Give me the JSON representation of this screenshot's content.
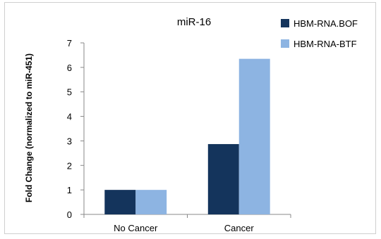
{
  "chart_data": {
    "type": "bar",
    "title": "miR-16",
    "xlabel": "",
    "ylabel": "Fold Change (normalized to miR-451)",
    "categories": [
      "No Cancer",
      "Cancer"
    ],
    "series": [
      {
        "name": "HBM-RNA.BOF",
        "values": [
          1.0,
          2.87
        ],
        "color": "#14345c"
      },
      {
        "name": "HBM-RNA-BTF",
        "values": [
          1.0,
          6.35
        ],
        "color": "#8db4e2"
      }
    ],
    "ylim": [
      0,
      7
    ],
    "yticks": [
      "0",
      "1",
      "2",
      "3",
      "4",
      "5",
      "6",
      "7"
    ],
    "grid": false,
    "legend_position": "top-right"
  }
}
